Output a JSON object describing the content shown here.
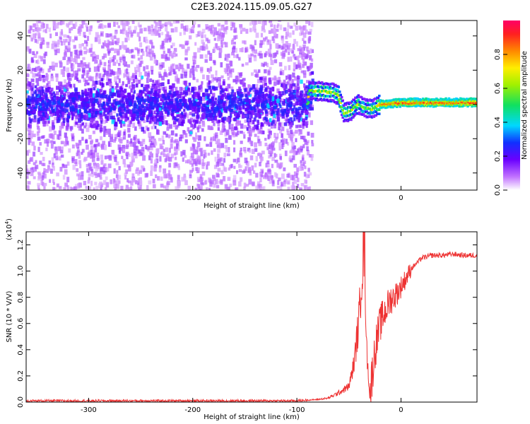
{
  "figure": {
    "title": "C2E3.2024.115.09.05.G27"
  },
  "chart_data": [
    {
      "type": "heatmap",
      "title": "C2E3.2024.115.09.05.G27",
      "xlabel": "Height of straight line (km)",
      "ylabel": "Frequency (Hz)",
      "xlim": [
        -360,
        73
      ],
      "ylim": [
        -50,
        49
      ],
      "xticks": [
        -300,
        -200,
        -100,
        0
      ],
      "yticks": [
        -40,
        -20,
        0,
        20,
        40
      ],
      "ridge": [
        {
          "x": -360,
          "y": 0
        },
        {
          "x": -90,
          "y": 0
        },
        {
          "x": -88,
          "y": 8
        },
        {
          "x": -65,
          "y": 7
        },
        {
          "x": -60,
          "y": 5
        },
        {
          "x": -55,
          "y": -5
        },
        {
          "x": -48,
          "y": -4
        },
        {
          "x": -42,
          "y": 0
        },
        {
          "x": -35,
          "y": -2
        },
        {
          "x": -28,
          "y": -3
        },
        {
          "x": -20,
          "y": 0
        },
        {
          "x": 0,
          "y": 1
        },
        {
          "x": 73,
          "y": 1
        }
      ],
      "colorbar": {
        "label": "Normalized spectral amplitude",
        "range": [
          0.0,
          1.0
        ],
        "ticks": [
          0.0,
          0.2,
          0.4,
          0.6,
          0.8
        ]
      }
    },
    {
      "type": "line",
      "xlabel": "Height of straight line (km)",
      "ylabel": "SNR (10 * V/V)",
      "yscale_label": "(x10",
      "yscale_exp": "4",
      "yscale_close": ")",
      "xlim": [
        -360,
        73
      ],
      "ylim": [
        0,
        1.3
      ],
      "xticks": [
        -300,
        -200,
        -100,
        0
      ],
      "yticks": [
        0.0,
        0.2,
        0.4,
        0.6,
        0.8,
        1.0,
        1.2
      ],
      "color": "#ee3333",
      "series": [
        {
          "x": [
            -360,
            -100,
            -80,
            -70,
            -60,
            -50,
            -45,
            -40,
            -38,
            -35,
            -33,
            -30,
            -25,
            -20,
            -15,
            -10,
            -5,
            0,
            5,
            10,
            20,
            30,
            40,
            50,
            60,
            73
          ],
          "y": [
            0.01,
            0.01,
            0.02,
            0.03,
            0.07,
            0.12,
            0.3,
            0.65,
            1.0,
            1.25,
            0.4,
            0.05,
            0.4,
            0.6,
            0.7,
            0.78,
            0.82,
            0.88,
            0.95,
            1.02,
            1.1,
            1.12,
            1.12,
            1.13,
            1.12,
            1.12
          ]
        }
      ]
    }
  ]
}
